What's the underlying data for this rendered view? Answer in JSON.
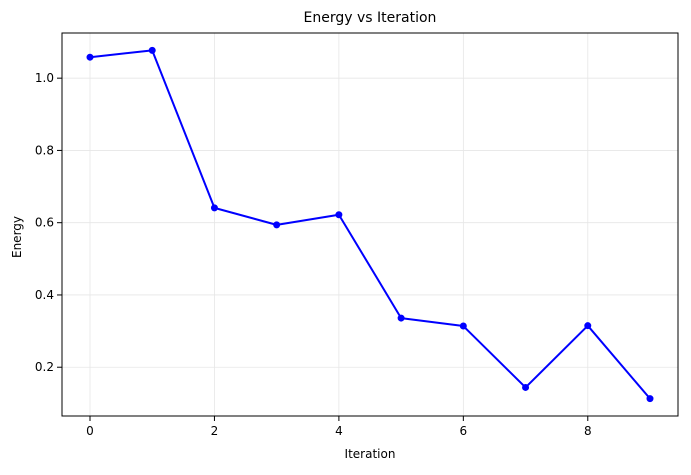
{
  "chart_data": {
    "type": "line",
    "title": "Energy vs Iteration",
    "xlabel": "Iteration",
    "ylabel": "Energy",
    "x": [
      0,
      1,
      2,
      3,
      4,
      5,
      6,
      7,
      8,
      9
    ],
    "series": [
      {
        "values": [
          1.058,
          1.077,
          0.641,
          0.594,
          0.622,
          0.336,
          0.314,
          0.144,
          0.315,
          0.113
        ],
        "color": "#0000ff",
        "marker": "circle"
      }
    ],
    "xlim": [
      -0.45,
      9.45
    ],
    "ylim": [
      0.065,
      1.125
    ],
    "xticks": [
      0,
      2,
      4,
      6,
      8
    ],
    "xtick_labels": [
      "0",
      "2",
      "4",
      "6",
      "8"
    ],
    "yticks": [
      0.2,
      0.4,
      0.6,
      0.8,
      1.0
    ],
    "ytick_labels": [
      "0.2",
      "0.4",
      "0.6",
      "0.8",
      "1.0"
    ],
    "grid": true,
    "grid_color": "#e6e6e6",
    "legend": "none"
  }
}
